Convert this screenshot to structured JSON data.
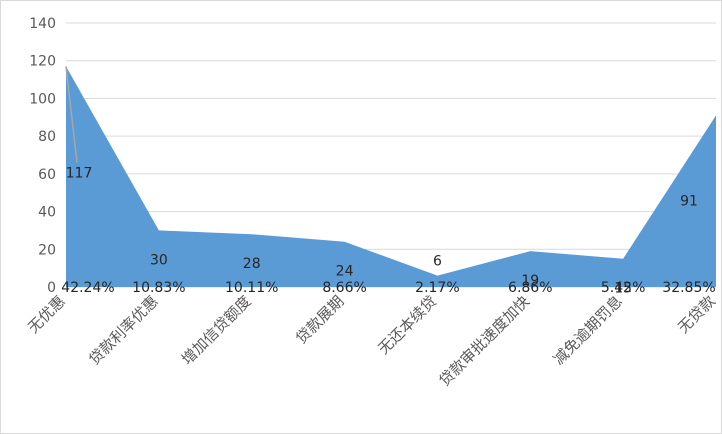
{
  "chart_data": {
    "type": "area",
    "categories": [
      "无优惠",
      "贷款利率优惠",
      "增加信贷额度",
      "贷款展期",
      "无还本续贷",
      "贷款审批速度加快",
      "减免逾期罚息",
      "无贷款"
    ],
    "values": [
      117,
      30,
      28,
      24,
      6,
      19,
      15,
      91
    ],
    "percent_labels": [
      "42.24%",
      "10.83%",
      "10.11%",
      "8.66%",
      "2.17%",
      "6.86%",
      "5.42%",
      "32.85%"
    ],
    "value_labels": [
      "117",
      "30",
      "28",
      "24",
      "6",
      "19",
      "15",
      "91"
    ],
    "yticks": [
      "0",
      "20",
      "40",
      "60",
      "80",
      "100",
      "120",
      "140"
    ],
    "ylim": [
      0,
      140
    ],
    "grid": true,
    "legend": "none",
    "fill_color": "#5b9bd5",
    "grid_color": "#d9d9d9",
    "leader_color": "#a6a6a6"
  }
}
